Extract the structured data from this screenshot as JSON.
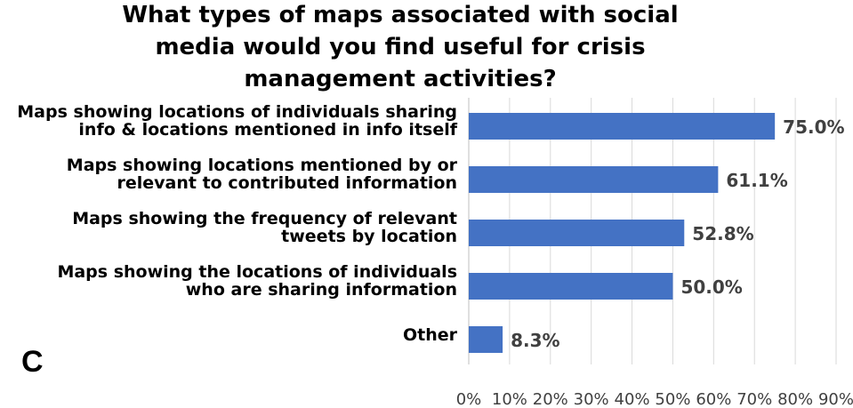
{
  "chart_data": {
    "type": "bar",
    "orientation": "horizontal",
    "title": "What types of maps associated with social media would you find useful for crisis management activities?",
    "title_lines": [
      "What types of maps associated with social",
      "media would you find useful for crisis",
      "management activities?"
    ],
    "categories": [
      [
        "Maps showing locations of individuals sharing",
        "info & locations mentioned in info itself"
      ],
      [
        "Maps showing locations mentioned by or",
        "relevant to contributed information"
      ],
      [
        "Maps showing the frequency of relevant",
        "tweets by location"
      ],
      [
        "Maps showing the locations of individuals",
        "who are sharing information"
      ],
      [
        "Other"
      ]
    ],
    "values": [
      75.0,
      61.1,
      52.8,
      50.0,
      8.3
    ],
    "data_labels": [
      "75.0%",
      "61.1%",
      "52.8%",
      "50.0%",
      "8.3%"
    ],
    "xlim": [
      0,
      90
    ],
    "x_ticks": [
      "0%",
      "10%",
      "20%",
      "30%",
      "40%",
      "50%",
      "60%",
      "70%",
      "80%",
      "90%"
    ],
    "grid": "vertical",
    "bar_color": "#4472C4",
    "grid_color": "#D9D9D9"
  },
  "panel_label": "C"
}
